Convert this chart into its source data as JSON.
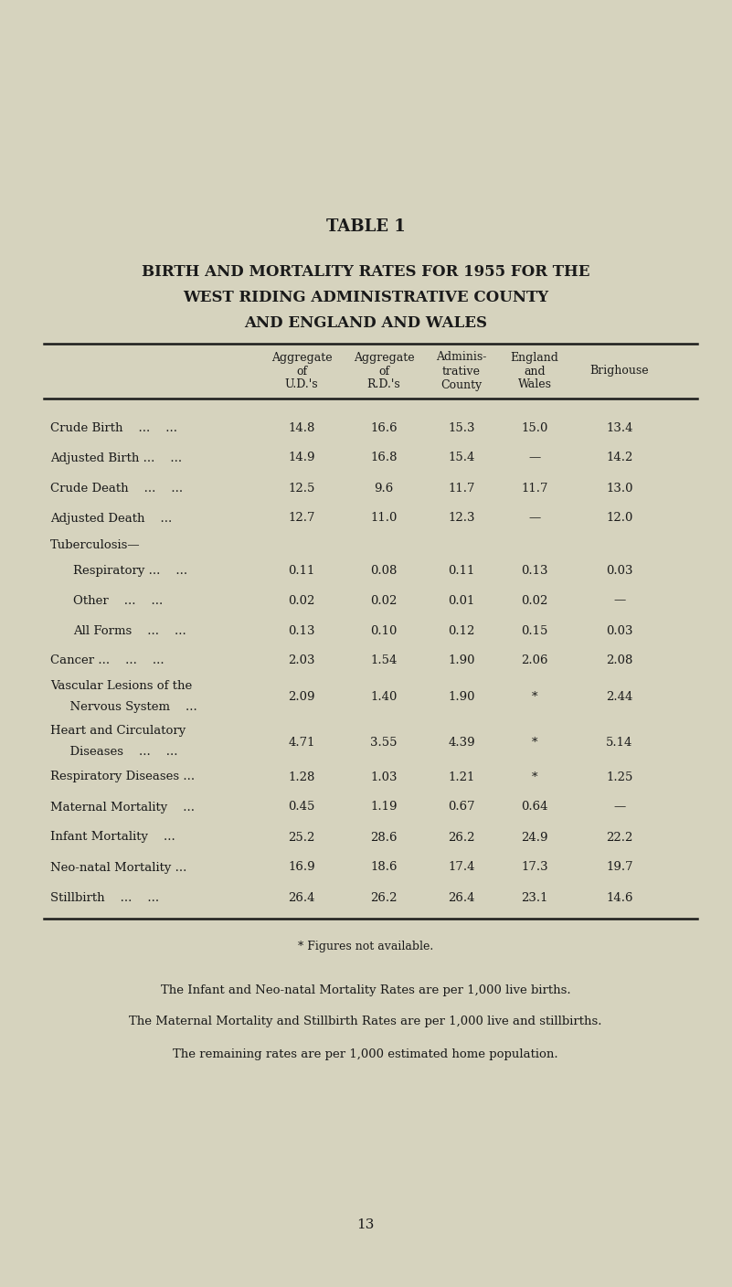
{
  "bg_color": "#d6d3be",
  "text_color": "#1a1a1a",
  "title_line1": "TABLE 1",
  "title_line2": "BIRTH AND MORTALITY RATES FOR 1955 FOR THE",
  "title_line3": "WEST RIDING ADMINISTRATIVE COUNTY",
  "title_line4": "AND ENGLAND AND WALES",
  "col_headers": [
    "Aggregate\nof\nU.D.'s",
    "Aggregate\nof\nR.D.'s",
    "Adminis-\ntrative\nCounty",
    "England\nand\nWales",
    "Brighouse"
  ],
  "rows": [
    {
      "label": "Crude Birth    ...    ...",
      "indent": 0,
      "values": [
        "14.8",
        "16.6",
        "15.3",
        "15.0",
        "13.4"
      ]
    },
    {
      "label": "Adjusted Birth ...    ...",
      "indent": 0,
      "values": [
        "14.9",
        "16.8",
        "15.4",
        "—",
        "14.2"
      ]
    },
    {
      "label": "Crude Death    ...    ...",
      "indent": 0,
      "values": [
        "12.5",
        "9.6",
        "11.7",
        "11.7",
        "13.0"
      ]
    },
    {
      "label": "Adjusted Death    ...",
      "indent": 0,
      "values": [
        "12.7",
        "11.0",
        "12.3",
        "—",
        "12.0"
      ]
    },
    {
      "label": "Tuberculosis—",
      "indent": 0,
      "values": [
        "",
        "",
        "",
        "",
        ""
      ]
    },
    {
      "label": "Respiratory ...    ...",
      "indent": 1,
      "values": [
        "0.11",
        "0.08",
        "0.11",
        "0.13",
        "0.03"
      ]
    },
    {
      "label": "Other    ...    ...",
      "indent": 1,
      "values": [
        "0.02",
        "0.02",
        "0.01",
        "0.02",
        "—"
      ]
    },
    {
      "label": "All Forms    ...    ...",
      "indent": 1,
      "values": [
        "0.13",
        "0.10",
        "0.12",
        "0.15",
        "0.03"
      ]
    },
    {
      "label": "Cancer ...    ...    ...",
      "indent": 0,
      "values": [
        "2.03",
        "1.54",
        "1.90",
        "2.06",
        "2.08"
      ]
    },
    {
      "label": "Vascular Lesions of the",
      "indent": 0,
      "values": [
        "",
        "",
        "",
        "",
        ""
      ],
      "multiline": true
    },
    {
      "label": "  Nervous System    ...",
      "indent": 2,
      "values": [
        "2.09",
        "1.40",
        "1.90",
        "*",
        "2.44"
      ],
      "multiline_data": true
    },
    {
      "label": "Heart and Circulatory",
      "indent": 0,
      "values": [
        "",
        "",
        "",
        "",
        ""
      ],
      "multiline": true
    },
    {
      "label": "  Diseases    ...    ...",
      "indent": 2,
      "values": [
        "4.71",
        "3.55",
        "4.39",
        "*",
        "5.14"
      ],
      "multiline_data": true
    },
    {
      "label": "Respiratory Diseases ...",
      "indent": 0,
      "values": [
        "1.28",
        "1.03",
        "1.21",
        "*",
        "1.25"
      ]
    },
    {
      "label": "Maternal Mortality    ...",
      "indent": 0,
      "values": [
        "0.45",
        "1.19",
        "0.67",
        "0.64",
        "—"
      ]
    },
    {
      "label": "Infant Mortality    ...",
      "indent": 0,
      "values": [
        "25.2",
        "28.6",
        "26.2",
        "24.9",
        "22.2"
      ]
    },
    {
      "label": "Neo-natal Mortality ...",
      "indent": 0,
      "values": [
        "16.9",
        "18.6",
        "17.4",
        "17.3",
        "19.7"
      ]
    },
    {
      "label": "Stillbirth    ...    ...",
      "indent": 0,
      "values": [
        "26.4",
        "26.2",
        "26.4",
        "23.1",
        "14.6"
      ]
    }
  ],
  "footnote1": "* Figures not available.",
  "footnote2": "The Infant and Neo-natal Mortality Rates are per 1,000 live births.",
  "footnote3": "The Maternal Mortality and Stillbirth Rates are per 1,000 live and stillbirths.",
  "footnote4": "The remaining rates are per 1,000 estimated home population.",
  "page_number": "13"
}
